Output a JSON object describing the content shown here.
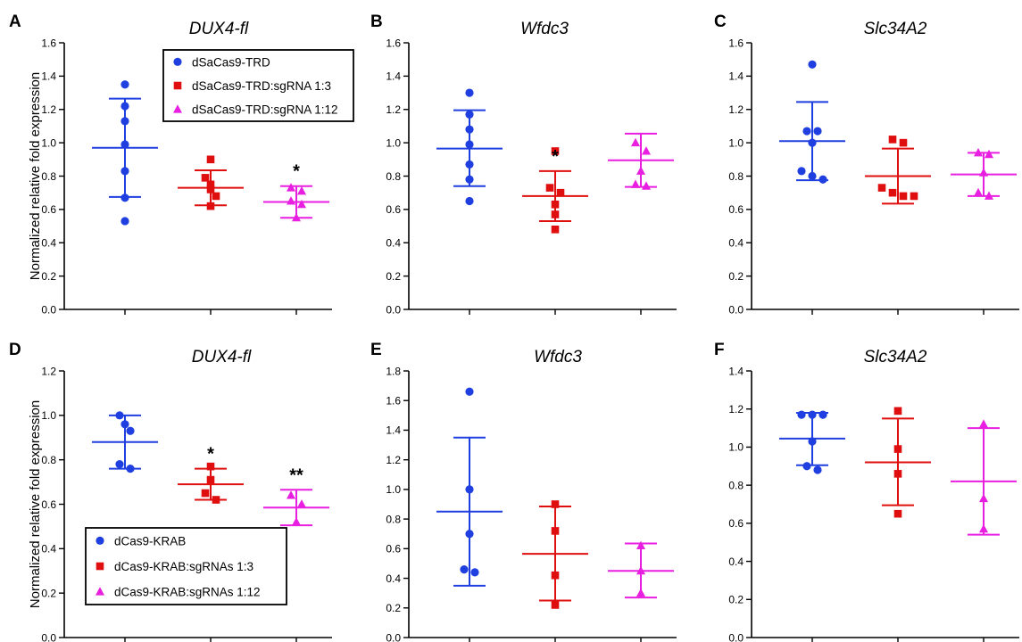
{
  "colors": {
    "series1": "#1f3fe0",
    "series2": "#e00f0f",
    "series3": "#e81ee0",
    "axis": "#000000"
  },
  "chart_data": [
    {
      "type": "scatter",
      "panel": "A",
      "title": "DUX4-fl",
      "ylabel": "Normalized relative fold expression",
      "ylim": [
        0,
        1.6
      ],
      "yticks": [
        0.0,
        0.2,
        0.4,
        0.6,
        0.8,
        1.0,
        1.2,
        1.4,
        1.6
      ],
      "legend": [
        "dSaCas9-TRD",
        "dSaCas9-TRD:sgRNA 1:3",
        "dSaCas9-TRD:sgRNA 1:12"
      ],
      "groups": [
        {
          "points": [
            1.35,
            1.22,
            1.13,
            0.99,
            0.83,
            0.67,
            0.53
          ],
          "mean": 0.97,
          "sd_low": 0.675,
          "sd_high": 1.265,
          "sig": ""
        },
        {
          "points": [
            0.9,
            0.79,
            0.75,
            0.72,
            0.68,
            0.62
          ],
          "mean": 0.73,
          "sd_low": 0.625,
          "sd_high": 0.835,
          "sig": ""
        },
        {
          "points": [
            0.73,
            0.71,
            0.65,
            0.63,
            0.55
          ],
          "mean": 0.645,
          "sd_low": 0.55,
          "sd_high": 0.74,
          "sig": "*"
        }
      ]
    },
    {
      "type": "scatter",
      "panel": "B",
      "title": "Wfdc3",
      "ylabel": "",
      "ylim": [
        0,
        1.6
      ],
      "yticks": [
        0.0,
        0.2,
        0.4,
        0.6,
        0.8,
        1.0,
        1.2,
        1.4,
        1.6
      ],
      "groups": [
        {
          "points": [
            1.3,
            1.17,
            1.08,
            0.99,
            0.87,
            0.78,
            0.65
          ],
          "mean": 0.965,
          "sd_low": 0.74,
          "sd_high": 1.195,
          "sig": ""
        },
        {
          "points": [
            0.95,
            0.73,
            0.7,
            0.63,
            0.57,
            0.48
          ],
          "mean": 0.68,
          "sd_low": 0.53,
          "sd_high": 0.83,
          "sig": "*"
        },
        {
          "points": [
            1.0,
            0.95,
            0.83,
            0.75,
            0.74
          ],
          "mean": 0.895,
          "sd_low": 0.735,
          "sd_high": 1.055,
          "sig": ""
        }
      ]
    },
    {
      "type": "scatter",
      "panel": "C",
      "title": "Slc34A2",
      "ylabel": "",
      "ylim": [
        0,
        1.6
      ],
      "yticks": [
        0.0,
        0.2,
        0.4,
        0.6,
        0.8,
        1.0,
        1.2,
        1.4,
        1.6
      ],
      "groups": [
        {
          "points": [
            1.47,
            1.07,
            1.07,
            1.0,
            0.83,
            0.8,
            0.78
          ],
          "mean": 1.01,
          "sd_low": 0.775,
          "sd_high": 1.245,
          "sig": ""
        },
        {
          "points": [
            1.02,
            1.0,
            0.73,
            0.7,
            0.68,
            0.68
          ],
          "mean": 0.8,
          "sd_low": 0.635,
          "sd_high": 0.965,
          "sig": ""
        },
        {
          "points": [
            0.94,
            0.93,
            0.82,
            0.7,
            0.68
          ],
          "mean": 0.81,
          "sd_low": 0.68,
          "sd_high": 0.94,
          "sig": ""
        }
      ]
    },
    {
      "type": "scatter",
      "panel": "D",
      "title": "DUX4-fl",
      "ylabel": "Normalized relative fold expression",
      "ylim": [
        0,
        1.2
      ],
      "yticks": [
        0.0,
        0.2,
        0.4,
        0.6,
        0.8,
        1.0,
        1.2
      ],
      "legend": [
        "dCas9-KRAB",
        "dCas9-KRAB:sgRNAs 1:3",
        "dCas9-KRAB:sgRNAs 1:12"
      ],
      "groups": [
        {
          "points": [
            1.0,
            0.96,
            0.93,
            0.78,
            0.76
          ],
          "mean": 0.88,
          "sd_low": 0.76,
          "sd_high": 1.0,
          "sig": ""
        },
        {
          "points": [
            0.77,
            0.71,
            0.65,
            0.62
          ],
          "mean": 0.69,
          "sd_low": 0.62,
          "sd_high": 0.76,
          "sig": "*"
        },
        {
          "points": [
            0.64,
            0.6,
            0.52
          ],
          "mean": 0.585,
          "sd_low": 0.505,
          "sd_high": 0.665,
          "sig": "**"
        }
      ]
    },
    {
      "type": "scatter",
      "panel": "E",
      "title": "Wfdc3",
      "ylabel": "",
      "ylim": [
        0,
        1.8
      ],
      "yticks": [
        0.0,
        0.2,
        0.4,
        0.6,
        0.8,
        1.0,
        1.2,
        1.4,
        1.6,
        1.8
      ],
      "groups": [
        {
          "points": [
            1.66,
            1.0,
            0.7,
            0.46,
            0.44
          ],
          "mean": 0.85,
          "sd_low": 0.35,
          "sd_high": 1.35,
          "sig": ""
        },
        {
          "points": [
            0.9,
            0.72,
            0.42,
            0.22
          ],
          "mean": 0.565,
          "sd_low": 0.25,
          "sd_high": 0.885,
          "sig": ""
        },
        {
          "points": [
            0.62,
            0.45,
            0.3
          ],
          "mean": 0.45,
          "sd_low": 0.27,
          "sd_high": 0.635,
          "sig": ""
        }
      ]
    },
    {
      "type": "scatter",
      "panel": "F",
      "title": "Slc34A2",
      "ylabel": "",
      "ylim": [
        0,
        1.4
      ],
      "yticks": [
        0.0,
        0.2,
        0.4,
        0.6,
        0.8,
        1.0,
        1.2,
        1.4
      ],
      "groups": [
        {
          "points": [
            1.17,
            1.17,
            1.17,
            1.03,
            0.9,
            0.88
          ],
          "mean": 1.045,
          "sd_low": 0.905,
          "sd_high": 1.18,
          "sig": ""
        },
        {
          "points": [
            1.19,
            0.99,
            0.86,
            0.65
          ],
          "mean": 0.92,
          "sd_low": 0.695,
          "sd_high": 1.15,
          "sig": ""
        },
        {
          "points": [
            1.12,
            0.73,
            0.57
          ],
          "mean": 0.82,
          "sd_low": 0.54,
          "sd_high": 1.1,
          "sig": ""
        }
      ]
    }
  ]
}
